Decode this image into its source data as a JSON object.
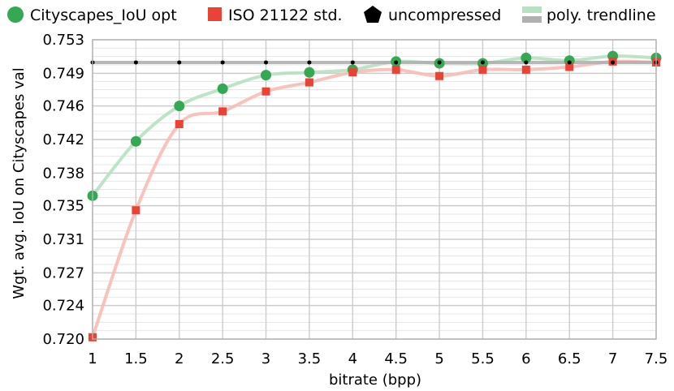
{
  "chart_data": {
    "type": "scatter",
    "xlabel": "bitrate (bpp)",
    "ylabel": "Wgt. avg. IoU on Cityscapes val",
    "xlim": [
      1,
      7.5
    ],
    "ylim": [
      0.72,
      0.753
    ],
    "x_ticks": [
      1,
      1.5,
      2,
      2.5,
      3,
      3.5,
      4,
      4.5,
      5,
      5.5,
      6,
      6.5,
      7,
      7.5
    ],
    "x_tick_labels": [
      "1",
      "1.5",
      "2",
      "2.5",
      "3",
      "3.5",
      "4",
      "4.5",
      "5",
      "5.5",
      "6",
      "6.5",
      "7",
      "7.5"
    ],
    "y_ticks": [
      0.72,
      0.7237,
      0.7273,
      0.731,
      0.7347,
      0.7383,
      0.742,
      0.7457,
      0.7493,
      0.753
    ],
    "y_tick_labels": [
      "0.720",
      "0.724",
      "0.727",
      "0.731",
      "0.735",
      "0.738",
      "0.742",
      "0.746",
      "0.749",
      "0.753"
    ],
    "grid": true,
    "legend": {
      "position": "top",
      "entries": [
        {
          "label": "Cityscapes_IoU opt",
          "marker": "circle",
          "color": "#34a853"
        },
        {
          "label": "ISO 21122 std.",
          "marker": "square",
          "color": "#ea4335"
        },
        {
          "label": "uncompressed",
          "marker": "pentagon",
          "color": "#000000"
        },
        {
          "label": "poly. trendline",
          "marker": "band",
          "colors": [
            "#b7e1c1",
            "#b0b0b0"
          ]
        }
      ]
    },
    "series": [
      {
        "name": "Cityscapes_IoU opt",
        "marker": "circle",
        "color": "#34a853",
        "trend_color": "#b7e1c1",
        "x": [
          1,
          1.5,
          2,
          2.5,
          3,
          3.5,
          4,
          4.5,
          5,
          5.5,
          6,
          6.5,
          7,
          7.5
        ],
        "y": [
          0.7358,
          0.7418,
          0.7457,
          0.7476,
          0.7491,
          0.7494,
          0.7497,
          0.7506,
          0.7504,
          0.7504,
          0.751,
          0.7507,
          0.7512,
          0.751
        ]
      },
      {
        "name": "ISO 21122 std.",
        "marker": "square",
        "color": "#ea4335",
        "trend_color": "#f6bcb5",
        "x": [
          1,
          1.5,
          2,
          2.5,
          3,
          3.5,
          4,
          4.5,
          5,
          5.5,
          6,
          6.5,
          7,
          7.5
        ],
        "y": [
          0.7202,
          0.7342,
          0.7437,
          0.7451,
          0.7473,
          0.7483,
          0.7494,
          0.7497,
          0.749,
          0.7497,
          0.7497,
          0.75,
          0.7506,
          0.7505
        ]
      },
      {
        "name": "uncompressed",
        "marker": "pentagon",
        "color": "#000000",
        "trend_color": "#b0b0b0",
        "x": [
          1,
          1.5,
          2,
          2.5,
          3,
          3.5,
          4,
          4.5,
          5,
          5.5,
          6,
          6.5,
          7,
          7.5
        ],
        "y": [
          0.7505,
          0.7505,
          0.7505,
          0.7505,
          0.7505,
          0.7505,
          0.7505,
          0.7505,
          0.7505,
          0.7505,
          0.7505,
          0.7505,
          0.7505,
          0.7505
        ]
      }
    ]
  }
}
